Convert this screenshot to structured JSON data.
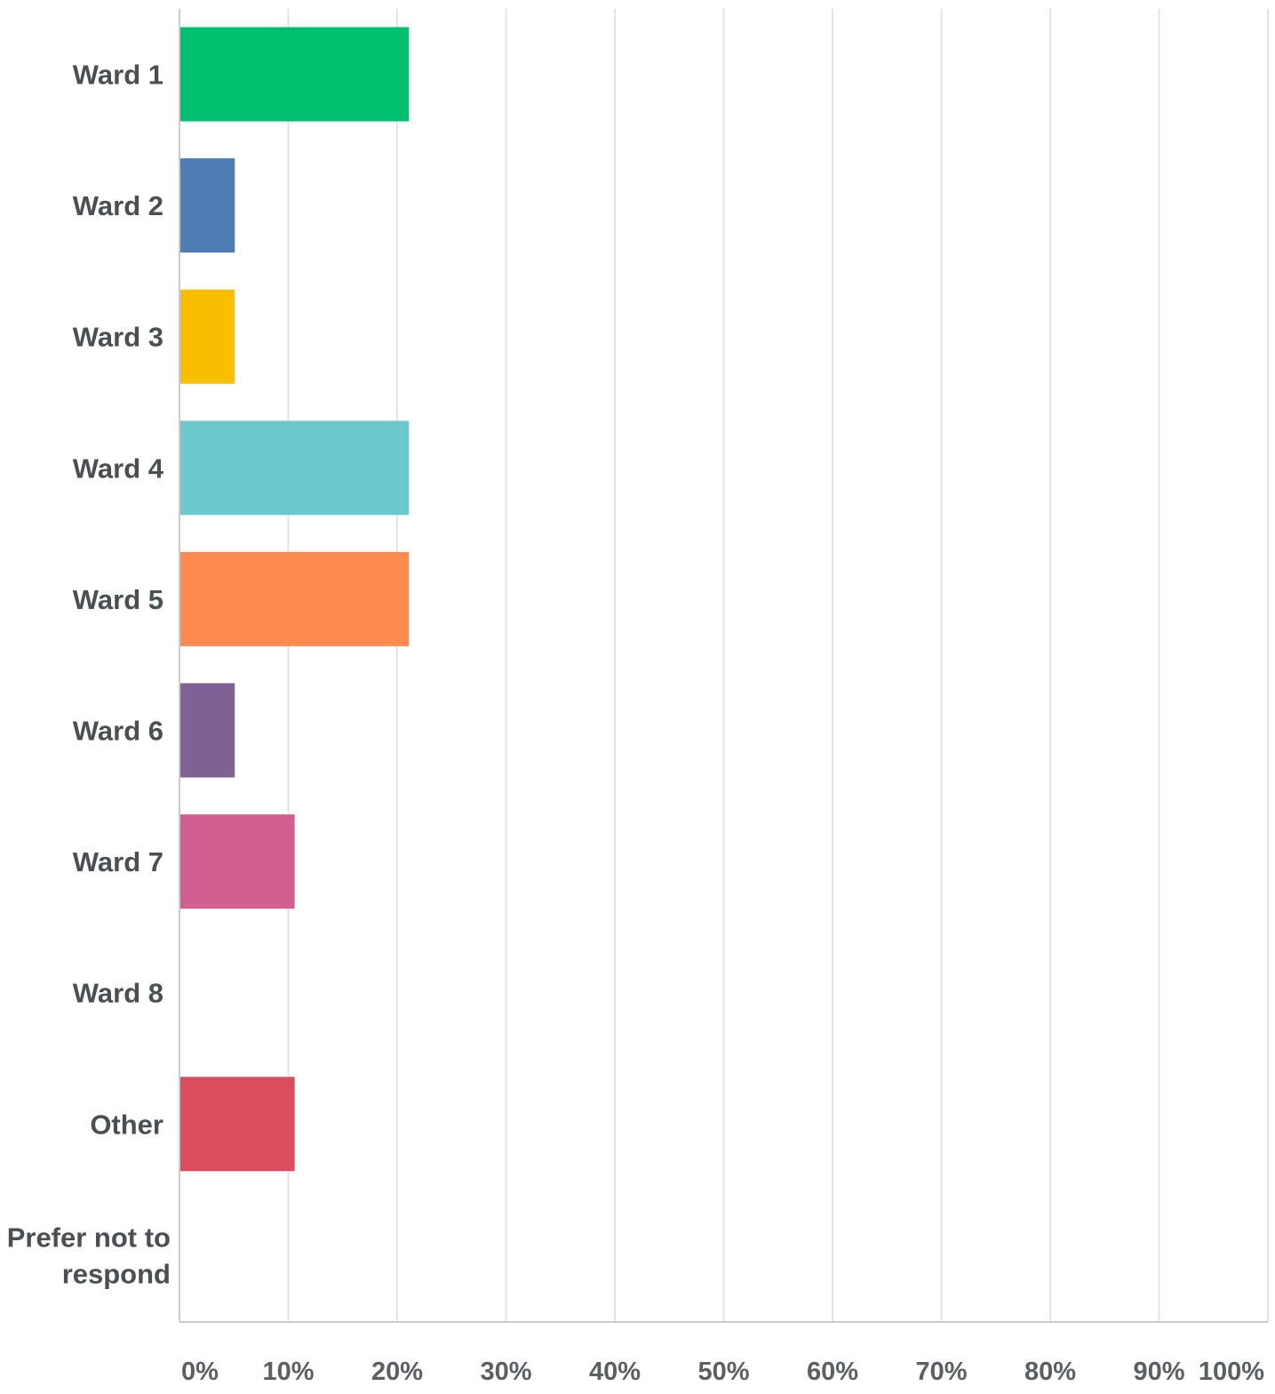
{
  "chart_data": {
    "type": "bar",
    "orientation": "horizontal",
    "categories": [
      "Ward 1",
      "Ward 2",
      "Ward 3",
      "Ward 4",
      "Ward 5",
      "Ward 6",
      "Ward 7",
      "Ward 8",
      "Other",
      "Prefer not to respond"
    ],
    "values": [
      21,
      5,
      5,
      21,
      21,
      5,
      10.5,
      0,
      10.5,
      0
    ],
    "colors": [
      "#00bf6f",
      "#507cb6",
      "#f9be00",
      "#6bc8cd",
      "#ff8b4f",
      "#7f6195",
      "#d25f90",
      "#aaaaaa",
      "#db4d5c",
      "#aaaaaa"
    ],
    "xlim": [
      0,
      100
    ],
    "ticks": [
      0,
      10,
      20,
      30,
      40,
      50,
      60,
      70,
      80,
      90,
      100
    ],
    "tick_labels": [
      "0%",
      "10%",
      "20%",
      "30%",
      "40%",
      "50%",
      "60%",
      "70%",
      "80%",
      "90%",
      "100%"
    ],
    "title": "",
    "xlabel": "",
    "ylabel": "",
    "grid": true,
    "legend": "none"
  }
}
